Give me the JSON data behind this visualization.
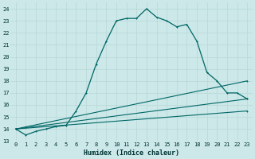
{
  "xlabel": "Humidex (Indice chaleur)",
  "bg_color": "#cce8e8",
  "line_color": "#006666",
  "grid_color": "#b8d8d8",
  "xlim": [
    -0.5,
    23.5
  ],
  "ylim": [
    13,
    24.5
  ],
  "yticks": [
    13,
    14,
    15,
    16,
    17,
    18,
    19,
    20,
    21,
    22,
    23,
    24
  ],
  "xticks": [
    0,
    1,
    2,
    3,
    4,
    5,
    6,
    7,
    8,
    9,
    10,
    11,
    12,
    13,
    14,
    15,
    16,
    17,
    18,
    19,
    20,
    21,
    22,
    23
  ],
  "series1_x": [
    0,
    1,
    2,
    3,
    4,
    5,
    6,
    7,
    8,
    9,
    10,
    11,
    12,
    13,
    14,
    15,
    16,
    17,
    18,
    19,
    20,
    21,
    22,
    23
  ],
  "series1_y": [
    14.0,
    13.5,
    13.8,
    14.0,
    14.2,
    14.3,
    15.5,
    17.0,
    19.4,
    21.3,
    23.0,
    23.2,
    23.2,
    24.0,
    23.3,
    23.0,
    22.5,
    22.7,
    21.3,
    18.7,
    18.0,
    17.0,
    17.0,
    16.5
  ],
  "series2_x": [
    0,
    23
  ],
  "series2_y": [
    14.0,
    18.0
  ],
  "series3_x": [
    0,
    23
  ],
  "series3_y": [
    14.0,
    16.5
  ],
  "series4_x": [
    0,
    23
  ],
  "series4_y": [
    14.0,
    15.5
  ],
  "tick_fontsize": 5.0,
  "xlabel_fontsize": 6.0
}
